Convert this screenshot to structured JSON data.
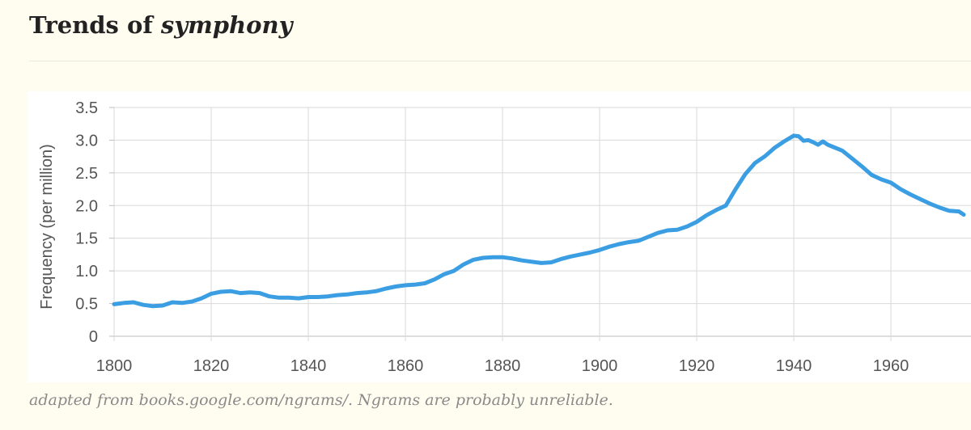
{
  "header": {
    "title_prefix": "Trends of",
    "title_term": "symphony"
  },
  "footer": {
    "caption": "adapted from books.google.com/ngrams/. Ngrams are probably unreliable."
  },
  "colors": {
    "background": "#fffdf0",
    "plot_background": "#ffffff",
    "line": "#3b9ee3",
    "grid": "#d9d9d9",
    "axis_text": "#555555"
  },
  "chart_data": {
    "type": "line",
    "title": "",
    "xlabel": "",
    "ylabel": "Frequency (per million)",
    "xlim": [
      1800,
      1975
    ],
    "ylim": [
      0,
      3.5
    ],
    "grid": true,
    "legend": "none",
    "x_ticks": [
      1800,
      1820,
      1840,
      1860,
      1880,
      1900,
      1920,
      1940,
      1960
    ],
    "x_tick_labels": [
      "1800",
      "1820",
      "1840",
      "1860",
      "1880",
      "1900",
      "1920",
      "1940",
      "1960"
    ],
    "y_ticks": [
      0,
      0.5,
      1.0,
      1.5,
      2.0,
      2.5,
      3.0,
      3.5
    ],
    "y_tick_labels": [
      "0",
      "0.5",
      "1.0",
      "1.5",
      "2.0",
      "2.5",
      "3.0",
      "3.5"
    ],
    "series": [
      {
        "color": "#3b9ee3",
        "x": [
          1800,
          1802,
          1804,
          1806,
          1808,
          1810,
          1812,
          1814,
          1816,
          1818,
          1820,
          1822,
          1824,
          1826,
          1828,
          1830,
          1832,
          1834,
          1836,
          1838,
          1840,
          1842,
          1844,
          1846,
          1848,
          1850,
          1852,
          1854,
          1856,
          1858,
          1860,
          1862,
          1864,
          1866,
          1868,
          1870,
          1872,
          1874,
          1876,
          1878,
          1880,
          1882,
          1884,
          1886,
          1888,
          1890,
          1892,
          1894,
          1896,
          1898,
          1900,
          1902,
          1904,
          1906,
          1908,
          1910,
          1912,
          1914,
          1916,
          1918,
          1920,
          1922,
          1924,
          1926,
          1928,
          1930,
          1932,
          1934,
          1936,
          1938,
          1940,
          1941,
          1942,
          1943,
          1944,
          1945,
          1946,
          1947,
          1948,
          1950,
          1952,
          1954,
          1956,
          1958,
          1960,
          1962,
          1964,
          1966,
          1968,
          1970,
          1972,
          1974,
          1975
        ],
        "values": [
          0.49,
          0.51,
          0.52,
          0.48,
          0.46,
          0.47,
          0.52,
          0.51,
          0.53,
          0.58,
          0.65,
          0.68,
          0.69,
          0.66,
          0.67,
          0.66,
          0.61,
          0.59,
          0.59,
          0.58,
          0.6,
          0.6,
          0.61,
          0.63,
          0.64,
          0.66,
          0.67,
          0.69,
          0.73,
          0.76,
          0.78,
          0.79,
          0.81,
          0.87,
          0.95,
          1.0,
          1.1,
          1.17,
          1.2,
          1.21,
          1.21,
          1.19,
          1.16,
          1.14,
          1.12,
          1.13,
          1.18,
          1.22,
          1.25,
          1.28,
          1.32,
          1.37,
          1.41,
          1.44,
          1.46,
          1.52,
          1.58,
          1.62,
          1.63,
          1.68,
          1.75,
          1.85,
          1.93,
          2.0,
          2.25,
          2.48,
          2.65,
          2.75,
          2.88,
          2.98,
          3.07,
          3.06,
          2.99,
          3.0,
          2.97,
          2.93,
          2.98,
          2.93,
          2.9,
          2.84,
          2.72,
          2.6,
          2.47,
          2.4,
          2.35,
          2.25,
          2.17,
          2.1,
          2.03,
          1.97,
          1.92,
          1.91,
          1.86
        ]
      }
    ]
  }
}
